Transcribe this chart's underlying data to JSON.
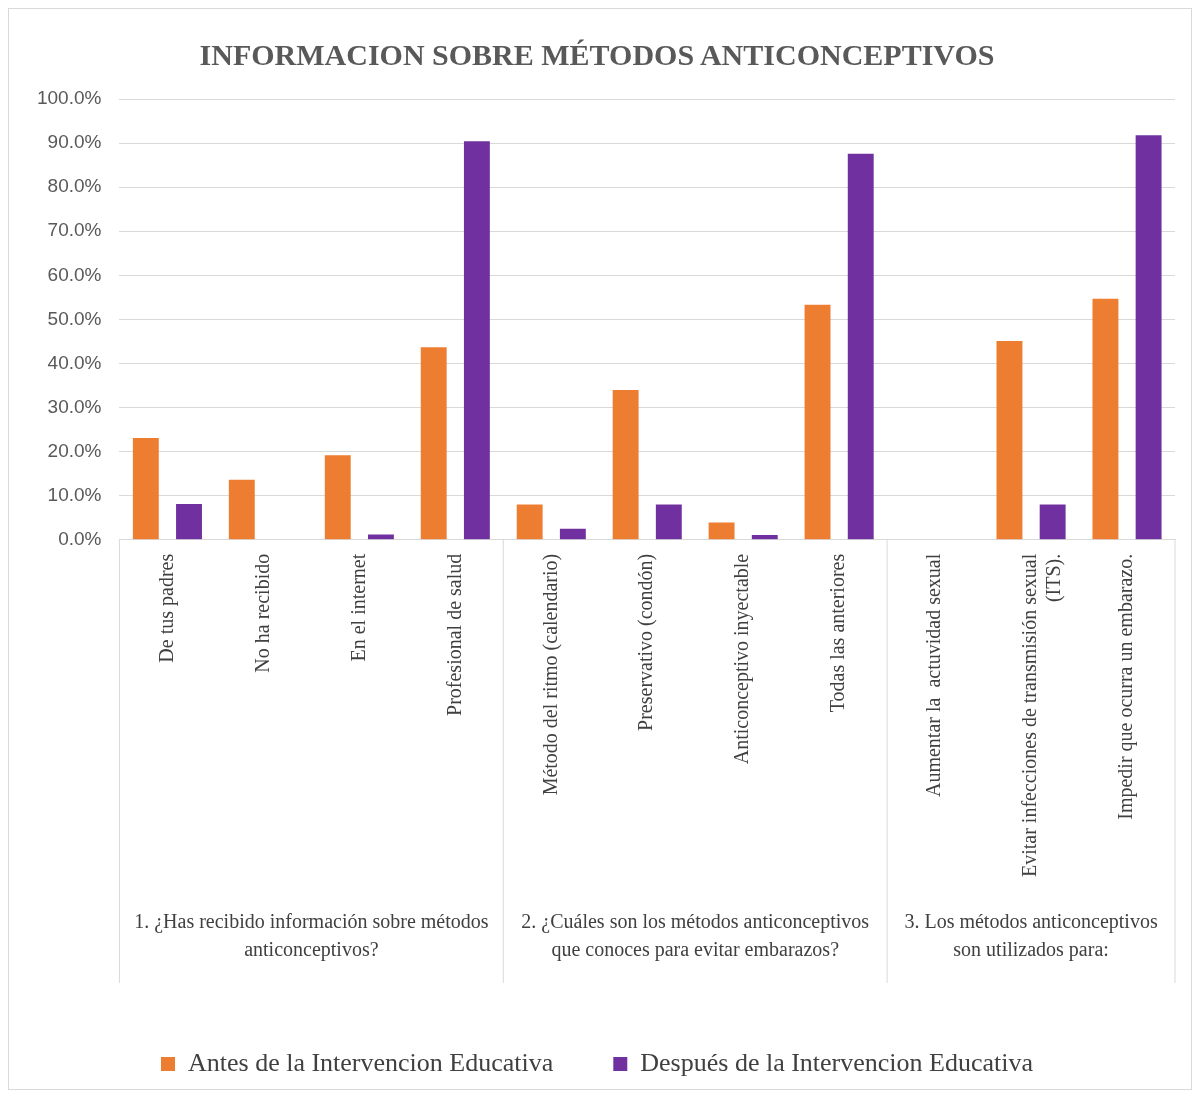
{
  "chart_data": {
    "type": "bar",
    "title": "INFORMACION SOBRE MÉTODOS ANTICONCEPTIVOS",
    "categories": [
      "De tus padres",
      "No ha recibido",
      "En el internet",
      "Profesional de salud",
      "Método del ritmo (calendario)",
      "Preservativo (condón)",
      "Anticonceptivo inyectable",
      "Todas las anteriores",
      "Aumentar la  actuvidad sexual",
      "Evitar infecciones de transmisión sexual (ITS).",
      "Impedir que ocurra un embarazo."
    ],
    "series": [
      {
        "name": "Antes de la Intervencion Educativa",
        "color": "#ed7d31",
        "values": [
          23.1,
          13.6,
          19.2,
          43.7,
          8.0,
          34.0,
          3.9,
          53.3,
          0,
          45.1,
          54.7
        ]
      },
      {
        "name": "Después de la Intervencion Educativa",
        "color": "#7030a0",
        "values": [
          8.1,
          0,
          1.2,
          90.4,
          2.5,
          8.0,
          1.1,
          87.6,
          0,
          8.0,
          91.8
        ]
      }
    ],
    "ylim": [
      0,
      100
    ],
    "yticks": [
      {
        "value": 0,
        "label": "0.0%"
      },
      {
        "value": 10,
        "label": "10.0%"
      },
      {
        "value": 20,
        "label": "20.0%"
      },
      {
        "value": 30,
        "label": "30.0%"
      },
      {
        "value": 40,
        "label": "40.0%"
      },
      {
        "value": 50,
        "label": "50.0%"
      },
      {
        "value": 60,
        "label": "60.0%"
      },
      {
        "value": 70,
        "label": "70.0%"
      },
      {
        "value": 80,
        "label": "80.0%"
      },
      {
        "value": 90,
        "label": "90.0%"
      },
      {
        "value": 100,
        "label": "100.0%"
      }
    ],
    "grid": "y",
    "legend": "bottom",
    "annotations": [
      "1. ¿Has recibido información sobre métodos anticonceptivos?",
      "2. ¿Cuáles son los métodos anticonceptivos que conoces para evitar embarazos?",
      "3. Los métodos anticonceptivos son utilizados para:"
    ]
  }
}
